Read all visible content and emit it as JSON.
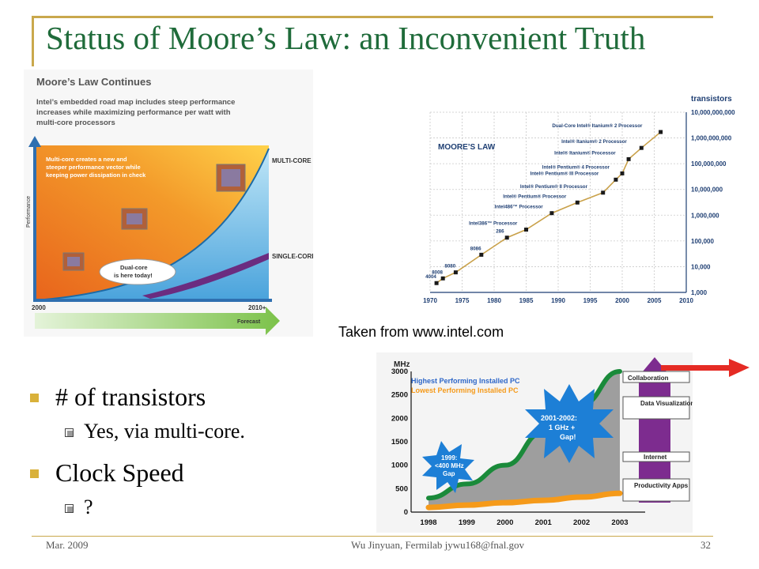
{
  "slide": {
    "title": "Status of Moore’s Law: an Inconvenient Truth",
    "caption": "Taken from www.intel.com",
    "bullets": [
      {
        "text": "# of transistors",
        "sub": "Yes, via multi-core."
      },
      {
        "text": "Clock Speed",
        "sub": "?"
      }
    ],
    "footer": {
      "date": "Mar. 2009",
      "author": "Wu Jinyuan, Fermilab jywu168@fnal.gov",
      "page": "32"
    }
  },
  "image_left": {
    "heading": "Moore’s Law Continues",
    "desc": [
      "Intel’s embedded road map includes steep performance",
      "increases while maximizing performance per watt with",
      "multi-core processors"
    ],
    "note": [
      "Multi-core creates a new and",
      "steeper performance vector while",
      "keeping power dissipation in check"
    ],
    "multi_core": "MULTI-CORE",
    "single_core": "SINGLE-CORE",
    "bubble": [
      "Dual-core",
      "is here today!"
    ],
    "y_axis": "Performance",
    "x_start": "2000",
    "x_end": "2010+",
    "forecast": "Forecast"
  },
  "chart_moore": {
    "label": "MOORE’S LAW",
    "y_title": "transistors",
    "y_ticks": [
      "10,000,000,000",
      "1,000,000,000",
      "100,000,000",
      "10,000,000",
      "1,000,000",
      "100,000",
      "10,000",
      "1,000"
    ],
    "x_ticks": [
      "1970",
      "1975",
      "1980",
      "1985",
      "1990",
      "1995",
      "2000",
      "2005",
      "2010"
    ],
    "points": [
      {
        "label": "4004",
        "year": 1971,
        "transistors": 2300
      },
      {
        "label": "8008",
        "year": 1972,
        "transistors": 3500
      },
      {
        "label": "8080",
        "year": 1974,
        "transistors": 6000
      },
      {
        "label": "8086",
        "year": 1978,
        "transistors": 29000
      },
      {
        "label": "286",
        "year": 1982,
        "transistors": 134000
      },
      {
        "label": "Intel386™ Processor",
        "year": 1985,
        "transistors": 275000
      },
      {
        "label": "Intel486™ Processor",
        "year": 1989,
        "transistors": 1200000
      },
      {
        "label": "Intel® Pentium® Processor",
        "year": 1993,
        "transistors": 3100000
      },
      {
        "label": "Intel® Pentium® II Processor",
        "year": 1997,
        "transistors": 7500000
      },
      {
        "label": "Intel® Pentium® III Processor",
        "year": 1999,
        "transistors": 24000000
      },
      {
        "label": "Intel® Pentium® 4 Processor",
        "year": 2000,
        "transistors": 42000000
      },
      {
        "label": "Intel® Itanium® Processor",
        "year": 2001,
        "transistors": 150000000
      },
      {
        "label": "Intel® Itanium® 2 Processor",
        "year": 2003,
        "transistors": 410000000
      },
      {
        "label": "Dual-Core Intel® Itanium® 2 Processor",
        "year": 2006,
        "transistors": 1700000000
      }
    ]
  },
  "chart_clock": {
    "y_title": "MHz",
    "legend": [
      "Highest Performing Installed PC",
      "Lowest Performing Installed PC"
    ],
    "y_ticks": [
      "3000",
      "2500",
      "2000",
      "1500",
      "1000",
      "500",
      "0"
    ],
    "x_ticks": [
      "1998",
      "1999",
      "2000",
      "2001",
      "2002",
      "2003"
    ],
    "burst1": [
      "1999:",
      "<400 MHz",
      "Gap"
    ],
    "burst2": [
      "2001-2002:",
      "1 GHz +",
      "Gap!"
    ],
    "apps": [
      "Collaboration",
      "Data Visualization",
      "Internet",
      "Productivity Apps"
    ],
    "highest": [
      {
        "year": 1998,
        "mhz": 300
      },
      {
        "year": 1999,
        "mhz": 600
      },
      {
        "year": 2000,
        "mhz": 1000
      },
      {
        "year": 2001,
        "mhz": 1700
      },
      {
        "year": 2002,
        "mhz": 2300
      },
      {
        "year": 2003,
        "mhz": 3000
      }
    ],
    "lowest": [
      {
        "year": 1998,
        "mhz": 100
      },
      {
        "year": 1999,
        "mhz": 150
      },
      {
        "year": 2000,
        "mhz": 200
      },
      {
        "year": 2001,
        "mhz": 250
      },
      {
        "year": 2002,
        "mhz": 320
      },
      {
        "year": 2003,
        "mhz": 400
      }
    ]
  }
}
